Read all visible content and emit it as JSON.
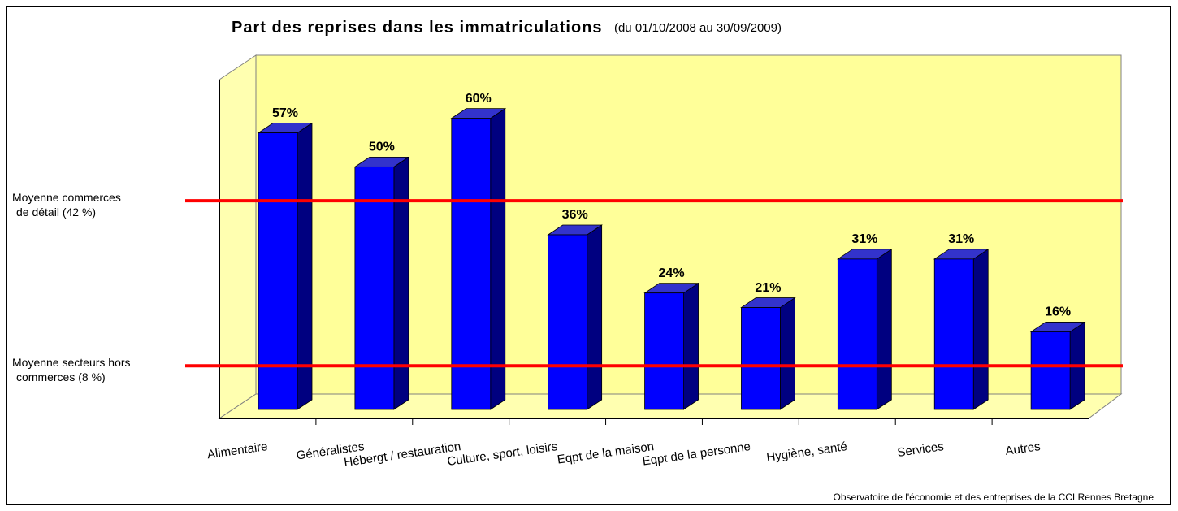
{
  "chart_data": {
    "type": "bar3d",
    "title": "Part des reprises dans les immatriculations",
    "subtitle": "(du 01/10/2008 au 30/09/2009)",
    "categories": [
      "Alimentaire",
      "Généralistes",
      "Hébergt / restauration",
      "Culture, sport, loisirs",
      "Eqpt de la maison",
      "Eqpt de la personne",
      "Hygiène, santé",
      "Services",
      "Autres"
    ],
    "values": [
      57,
      50,
      60,
      36,
      24,
      21,
      31,
      31,
      16
    ],
    "value_labels": [
      "57%",
      "50%",
      "60%",
      "36%",
      "24%",
      "21%",
      "31%",
      "31%",
      "16%"
    ],
    "color": "#0000ff",
    "ylim": [
      0,
      73
    ],
    "reference_lines": [
      {
        "value": 42,
        "label": [
          "Moyenne commerces",
          "de détail (42 %)"
        ],
        "color": "#ff0000"
      },
      {
        "value": 8,
        "label": [
          "Moyenne secteurs hors",
          "commerces (8 %)"
        ],
        "color": "#ff0000"
      }
    ],
    "source": "Observatoire de l'économie et des entreprises de la CCI Rennes Bretagne"
  }
}
